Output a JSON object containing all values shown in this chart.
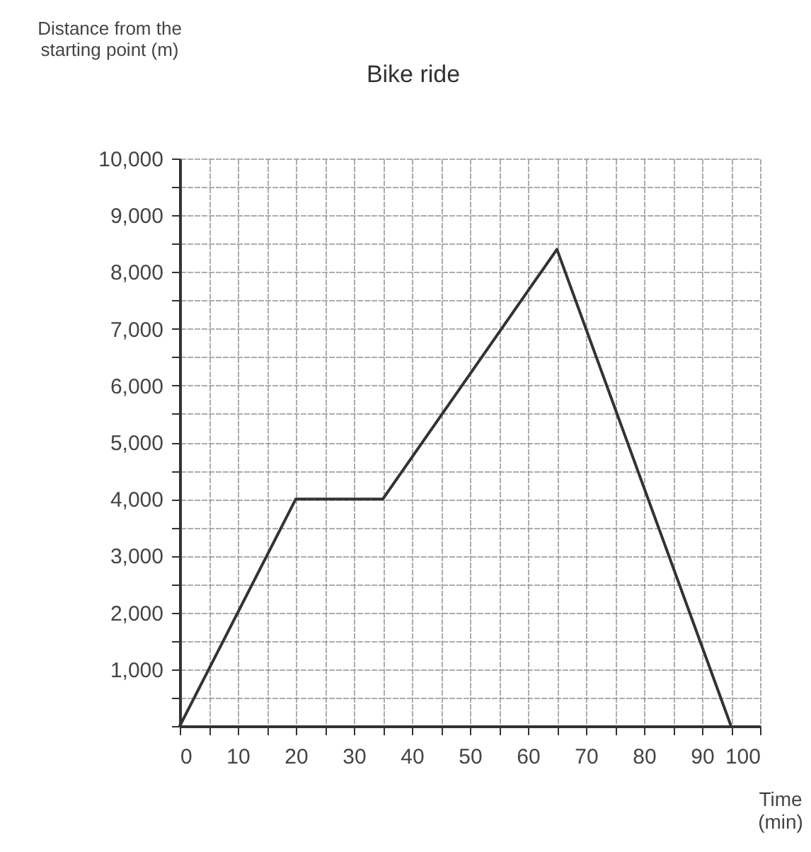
{
  "chart_data": {
    "type": "line",
    "title": "Bike ride",
    "xlabel": "Time (min)",
    "ylabel": "Distance from the starting point (m)",
    "x": [
      0,
      20,
      35,
      65,
      95
    ],
    "series": [
      {
        "color": "#333333",
        "values": [
          0,
          4000,
          4000,
          8400,
          0
        ]
      }
    ],
    "xlim": [
      0,
      100
    ],
    "ylim": [
      0,
      10000
    ],
    "xticks": [
      0,
      {
        "value": 5,
        "label": null
      },
      10,
      {
        "value": 15,
        "label": null
      },
      20,
      {
        "value": 25,
        "label": null
      },
      30,
      {
        "value": 35,
        "label": null
      },
      40,
      {
        "value": 45,
        "label": null
      },
      50,
      {
        "value": 55,
        "label": null
      },
      60,
      {
        "value": 65,
        "label": null
      },
      70,
      {
        "value": 75,
        "label": null
      },
      80,
      {
        "value": 85,
        "label": null
      },
      90,
      {
        "value": 95,
        "label": null
      },
      100
    ],
    "yticks": [
      {
        "value": 0,
        "label": null
      },
      {
        "value": 500,
        "label": null
      },
      {
        "value": 1000,
        "label": "1,000"
      },
      {
        "value": 1500,
        "label": null
      },
      {
        "value": 2000,
        "label": "2,000"
      },
      {
        "value": 2500,
        "label": null
      },
      {
        "value": 3000,
        "label": "3,000"
      },
      {
        "value": 3500,
        "label": null
      },
      {
        "value": 4000,
        "label": "4,000"
      },
      {
        "value": 4500,
        "label": null
      },
      {
        "value": 5000,
        "label": "5,000"
      },
      {
        "value": 5500,
        "label": null
      },
      {
        "value": 6000,
        "label": "6,000"
      },
      {
        "value": 6500,
        "label": null
      },
      {
        "value": 7000,
        "label": "7,000"
      },
      {
        "value": 7500,
        "label": null
      },
      {
        "value": 8000,
        "label": "8,000"
      },
      {
        "value": 8500,
        "label": null
      },
      {
        "value": 9000,
        "label": "9,000"
      },
      {
        "value": 9500,
        "label": null
      },
      {
        "value": 10000,
        "label": "10,000"
      }
    ],
    "grid": true,
    "line_style": "solid"
  }
}
